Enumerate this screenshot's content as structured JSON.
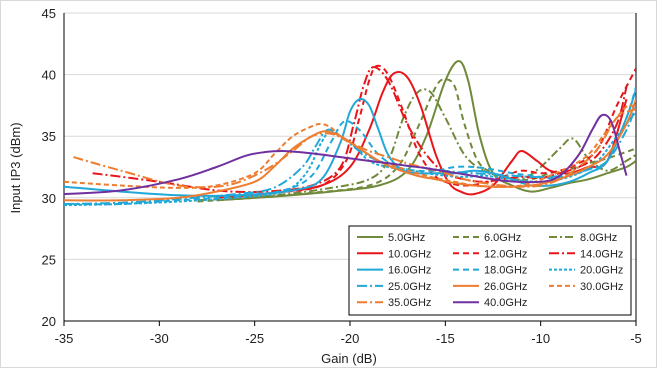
{
  "chart_data": {
    "type": "line",
    "xlabel": "Gain (dB)",
    "ylabel": "Input IP3 (dBm)",
    "xlim": [
      -35,
      -5
    ],
    "ylim": [
      20,
      45
    ],
    "xticks": [
      -35,
      -30,
      -25,
      -20,
      -15,
      -10,
      -5
    ],
    "yticks": [
      20,
      25,
      30,
      35,
      40,
      45
    ],
    "xtick_labels": [
      "-35",
      "-30",
      "-25",
      "-20",
      "-15",
      "-10",
      "-5"
    ],
    "ytick_labels": [
      "20",
      "25",
      "30",
      "35",
      "40",
      "45"
    ],
    "grid": "horizontal",
    "legend_position": "bottom-right",
    "series": [
      {
        "name": "5.0GHz",
        "color": "#70893a",
        "dash": "solid",
        "x": [
          -27.0,
          -24.0,
          -21.0,
          -18.5,
          -17.0,
          -16.0,
          -15.0,
          -14.3,
          -13.8,
          -13.2,
          -12.5,
          -11.5,
          -10.5,
          -9.5,
          -8.5,
          -7.5,
          -6.5,
          -5.5,
          -5.0
        ],
        "y": [
          29.8,
          30.1,
          30.5,
          31.0,
          32.2,
          35.0,
          39.5,
          41.1,
          39.5,
          35.0,
          32.0,
          31.0,
          30.5,
          30.8,
          31.2,
          31.5,
          32.0,
          32.5,
          33.0
        ]
      },
      {
        "name": "6.0GHz",
        "color": "#70893a",
        "dash": "6,4",
        "x": [
          -28.0,
          -25.0,
          -22.0,
          -19.0,
          -17.5,
          -16.5,
          -15.5,
          -15.0,
          -14.5,
          -14.0,
          -13.3,
          -12.5,
          -11.5,
          -10.5,
          -9.5,
          -8.5,
          -7.5,
          -6.5,
          -5.0
        ],
        "y": [
          29.7,
          30.0,
          30.4,
          31.0,
          32.5,
          35.5,
          39.0,
          39.6,
          39.0,
          36.0,
          33.0,
          32.0,
          31.5,
          31.5,
          32.0,
          32.3,
          32.8,
          33.2,
          34.0
        ]
      },
      {
        "name": "8.0GHz",
        "color": "#70893a",
        "dash": "8,3,2,3",
        "x": [
          -28.0,
          -24.0,
          -21.0,
          -19.0,
          -18.0,
          -17.2,
          -16.5,
          -15.8,
          -15.0,
          -14.0,
          -13.0,
          -12.0,
          -11.0,
          -10.0,
          -9.0,
          -8.3,
          -7.5,
          -6.5,
          -5.5,
          -5.0
        ],
        "y": [
          29.8,
          30.2,
          30.8,
          31.5,
          33.0,
          36.5,
          38.5,
          38.6,
          36.5,
          33.5,
          32.2,
          31.8,
          31.5,
          32.5,
          34.0,
          34.8,
          33.2,
          32.2,
          33.0,
          33.5
        ]
      },
      {
        "name": "10.0GHz",
        "color": "#e8151a",
        "dash": "solid",
        "x": [
          -27.0,
          -24.0,
          -21.5,
          -20.0,
          -19.0,
          -18.3,
          -17.7,
          -17.0,
          -16.3,
          -15.5,
          -14.8,
          -14.2,
          -13.5,
          -12.5,
          -11.5,
          -11.0,
          -10.2,
          -9.5,
          -8.5,
          -7.5,
          -6.5,
          -5.5
        ],
        "y": [
          30.0,
          30.4,
          31.0,
          32.5,
          35.5,
          38.5,
          40.1,
          39.8,
          37.5,
          33.5,
          31.2,
          30.5,
          30.3,
          31.0,
          33.0,
          33.8,
          33.0,
          32.2,
          32.0,
          32.5,
          33.0,
          38.0
        ]
      },
      {
        "name": "12.0GHz",
        "color": "#e8151a",
        "dash": "6,4",
        "x": [
          -27.0,
          -24.0,
          -21.5,
          -20.2,
          -19.5,
          -19.0,
          -18.6,
          -18.0,
          -17.2,
          -16.5,
          -15.7,
          -15.0,
          -14.0,
          -13.0,
          -12.0,
          -11.0,
          -10.0,
          -9.0,
          -8.0,
          -7.0,
          -6.0,
          -5.0
        ],
        "y": [
          30.0,
          30.4,
          31.0,
          33.0,
          36.5,
          39.5,
          40.7,
          40.0,
          37.0,
          34.0,
          32.0,
          31.3,
          31.0,
          31.2,
          31.7,
          32.2,
          32.0,
          32.2,
          32.8,
          34.0,
          37.5,
          40.5
        ]
      },
      {
        "name": "14.0GHz",
        "color": "#e8151a",
        "dash": "10,3,2,3",
        "x": [
          -33.5,
          -30.0,
          -27.0,
          -24.5,
          -22.0,
          -20.5,
          -19.8,
          -19.3,
          -18.8,
          -18.0,
          -17.0,
          -16.0,
          -15.0,
          -14.0,
          -13.0,
          -12.0,
          -11.0,
          -10.0,
          -9.0,
          -8.0,
          -7.0,
          -6.0,
          -5.5
        ],
        "y": [
          32.0,
          31.3,
          30.6,
          30.5,
          31.0,
          32.5,
          36.0,
          39.0,
          40.6,
          39.5,
          36.0,
          33.5,
          32.0,
          31.5,
          31.3,
          31.5,
          31.7,
          31.6,
          32.0,
          32.5,
          33.5,
          36.0,
          39.0
        ]
      },
      {
        "name": "16.0GHz",
        "color": "#22a8d8",
        "dash": "solid",
        "x": [
          -35.0,
          -32.0,
          -29.0,
          -26.0,
          -23.0,
          -21.5,
          -20.5,
          -20.0,
          -19.5,
          -19.0,
          -18.5,
          -18.0,
          -17.3,
          -16.5,
          -15.5,
          -14.5,
          -13.5,
          -12.5,
          -11.5,
          -10.5,
          -9.5,
          -8.5,
          -7.5,
          -6.5,
          -5.5,
          -5.0
        ],
        "y": [
          30.9,
          30.5,
          30.2,
          30.2,
          30.6,
          31.5,
          34.5,
          37.0,
          38.0,
          37.5,
          35.5,
          33.5,
          32.3,
          32.0,
          32.0,
          32.0,
          32.2,
          32.0,
          31.5,
          31.0,
          31.0,
          31.3,
          32.0,
          33.0,
          36.5,
          38.8
        ]
      },
      {
        "name": "18.0GHz",
        "color": "#22a8d8",
        "dash": "6,4",
        "x": [
          -35.0,
          -32.0,
          -29.0,
          -26.0,
          -23.5,
          -22.0,
          -21.0,
          -20.3,
          -19.5,
          -18.5,
          -17.5,
          -16.5,
          -15.5,
          -14.5,
          -13.5,
          -12.5,
          -11.5,
          -10.5,
          -9.5,
          -8.5,
          -7.5,
          -6.5,
          -5.5,
          -5.0
        ],
        "y": [
          29.5,
          29.5,
          29.8,
          30.1,
          30.6,
          31.8,
          34.5,
          36.2,
          35.5,
          33.5,
          32.5,
          32.2,
          32.2,
          32.5,
          32.5,
          32.3,
          32.0,
          31.8,
          31.6,
          31.8,
          32.3,
          33.0,
          36.5,
          39.0
        ]
      },
      {
        "name": "20.0GHz",
        "color": "#22a8d8",
        "dash": "3,2",
        "x": [
          -35.0,
          -32.0,
          -29.0,
          -26.0,
          -23.5,
          -22.3,
          -21.5,
          -21.0,
          -20.0,
          -19.0,
          -18.0,
          -17.0,
          -16.0,
          -15.0,
          -14.0,
          -13.0,
          -12.0,
          -11.0,
          -10.0,
          -9.0,
          -8.0,
          -7.0,
          -6.0,
          -5.0
        ],
        "y": [
          29.4,
          29.5,
          29.7,
          30.0,
          30.5,
          32.0,
          34.5,
          35.3,
          34.5,
          33.0,
          32.5,
          32.3,
          32.0,
          31.8,
          31.7,
          31.8,
          31.6,
          31.4,
          31.3,
          31.5,
          32.0,
          33.0,
          35.0,
          37.0
        ]
      },
      {
        "name": "25.0GHz",
        "color": "#22a8d8",
        "dash": "10,3,2,3",
        "x": [
          -35.0,
          -32.0,
          -29.0,
          -26.0,
          -24.0,
          -22.5,
          -21.8,
          -21.2,
          -20.5,
          -19.5,
          -18.5,
          -17.5,
          -16.5,
          -15.5,
          -14.5,
          -13.5,
          -12.5,
          -11.5,
          -10.5,
          -9.5,
          -8.5,
          -7.5,
          -6.5,
          -5.5,
          -5.0
        ],
        "y": [
          29.5,
          29.6,
          29.9,
          30.3,
          30.8,
          32.5,
          34.2,
          35.5,
          35.0,
          33.8,
          33.0,
          32.7,
          32.5,
          32.3,
          32.1,
          32.0,
          31.9,
          31.8,
          31.7,
          31.7,
          31.9,
          32.3,
          33.0,
          35.5,
          37.5
        ]
      },
      {
        "name": "26.0GHz",
        "color": "#ed7d31",
        "dash": "solid",
        "x": [
          -35.0,
          -32.0,
          -29.0,
          -27.0,
          -25.0,
          -24.0,
          -23.0,
          -22.0,
          -21.3,
          -20.5,
          -19.5,
          -18.5,
          -17.5,
          -16.5,
          -15.5,
          -14.5,
          -13.5,
          -12.5,
          -11.5,
          -10.5,
          -9.5,
          -8.5,
          -7.5,
          -6.5,
          -5.5,
          -5.0
        ],
        "y": [
          29.8,
          29.8,
          30.0,
          30.5,
          31.3,
          32.5,
          34.0,
          35.0,
          35.4,
          35.0,
          34.0,
          33.0,
          32.3,
          31.8,
          31.5,
          31.2,
          31.0,
          30.9,
          30.9,
          31.0,
          31.3,
          31.8,
          32.5,
          33.5,
          36.0,
          38.0
        ]
      },
      {
        "name": "30.0GHz",
        "color": "#ed7d31",
        "dash": "5,3",
        "x": [
          -35.0,
          -32.0,
          -29.0,
          -27.0,
          -25.0,
          -24.0,
          -23.0,
          -22.0,
          -21.5,
          -21.0,
          -20.5,
          -19.5,
          -18.5,
          -17.5,
          -16.5,
          -15.5,
          -14.5,
          -13.5,
          -12.5,
          -11.5,
          -10.5,
          -9.5,
          -8.5,
          -7.5,
          -6.5,
          -5.5,
          -5.0
        ],
        "y": [
          31.3,
          31.0,
          30.8,
          31.0,
          32.0,
          33.5,
          35.0,
          35.8,
          36.0,
          35.7,
          35.0,
          34.0,
          33.0,
          32.5,
          32.0,
          31.6,
          31.3,
          31.0,
          30.9,
          30.9,
          31.2,
          31.8,
          32.5,
          33.5,
          35.5,
          37.4,
          37.3
        ]
      },
      {
        "name": "35.0GHz",
        "color": "#ed7d31",
        "dash": "10,3,2,3",
        "x": [
          -34.5,
          -32.0,
          -29.0,
          -26.5,
          -24.5,
          -23.0,
          -22.0,
          -21.0,
          -20.0,
          -19.0,
          -18.0,
          -17.0,
          -16.0,
          -15.0,
          -14.0,
          -13.0,
          -12.0,
          -11.0,
          -10.0,
          -9.0,
          -8.0,
          -7.0,
          -6.0,
          -5.0
        ],
        "y": [
          33.3,
          32.2,
          31.0,
          31.0,
          32.2,
          33.8,
          35.0,
          35.2,
          34.5,
          33.8,
          33.3,
          32.8,
          32.4,
          32.0,
          31.5,
          31.2,
          31.0,
          30.9,
          31.0,
          31.5,
          32.5,
          34.0,
          36.5,
          37.2
        ]
      },
      {
        "name": "40.0GHz",
        "color": "#7030a0",
        "dash": "solid",
        "x": [
          -35.0,
          -32.0,
          -29.0,
          -27.0,
          -25.5,
          -24.5,
          -23.5,
          -22.0,
          -20.0,
          -18.0,
          -16.0,
          -14.0,
          -12.0,
          -10.0,
          -9.0,
          -8.0,
          -7.3,
          -6.8,
          -6.3,
          -5.8,
          -5.5
        ],
        "y": [
          30.3,
          30.6,
          31.5,
          32.5,
          33.4,
          33.7,
          33.8,
          33.6,
          33.2,
          32.8,
          32.4,
          31.9,
          31.4,
          31.3,
          31.8,
          33.5,
          35.5,
          36.7,
          36.2,
          33.5,
          31.8
        ]
      }
    ]
  }
}
